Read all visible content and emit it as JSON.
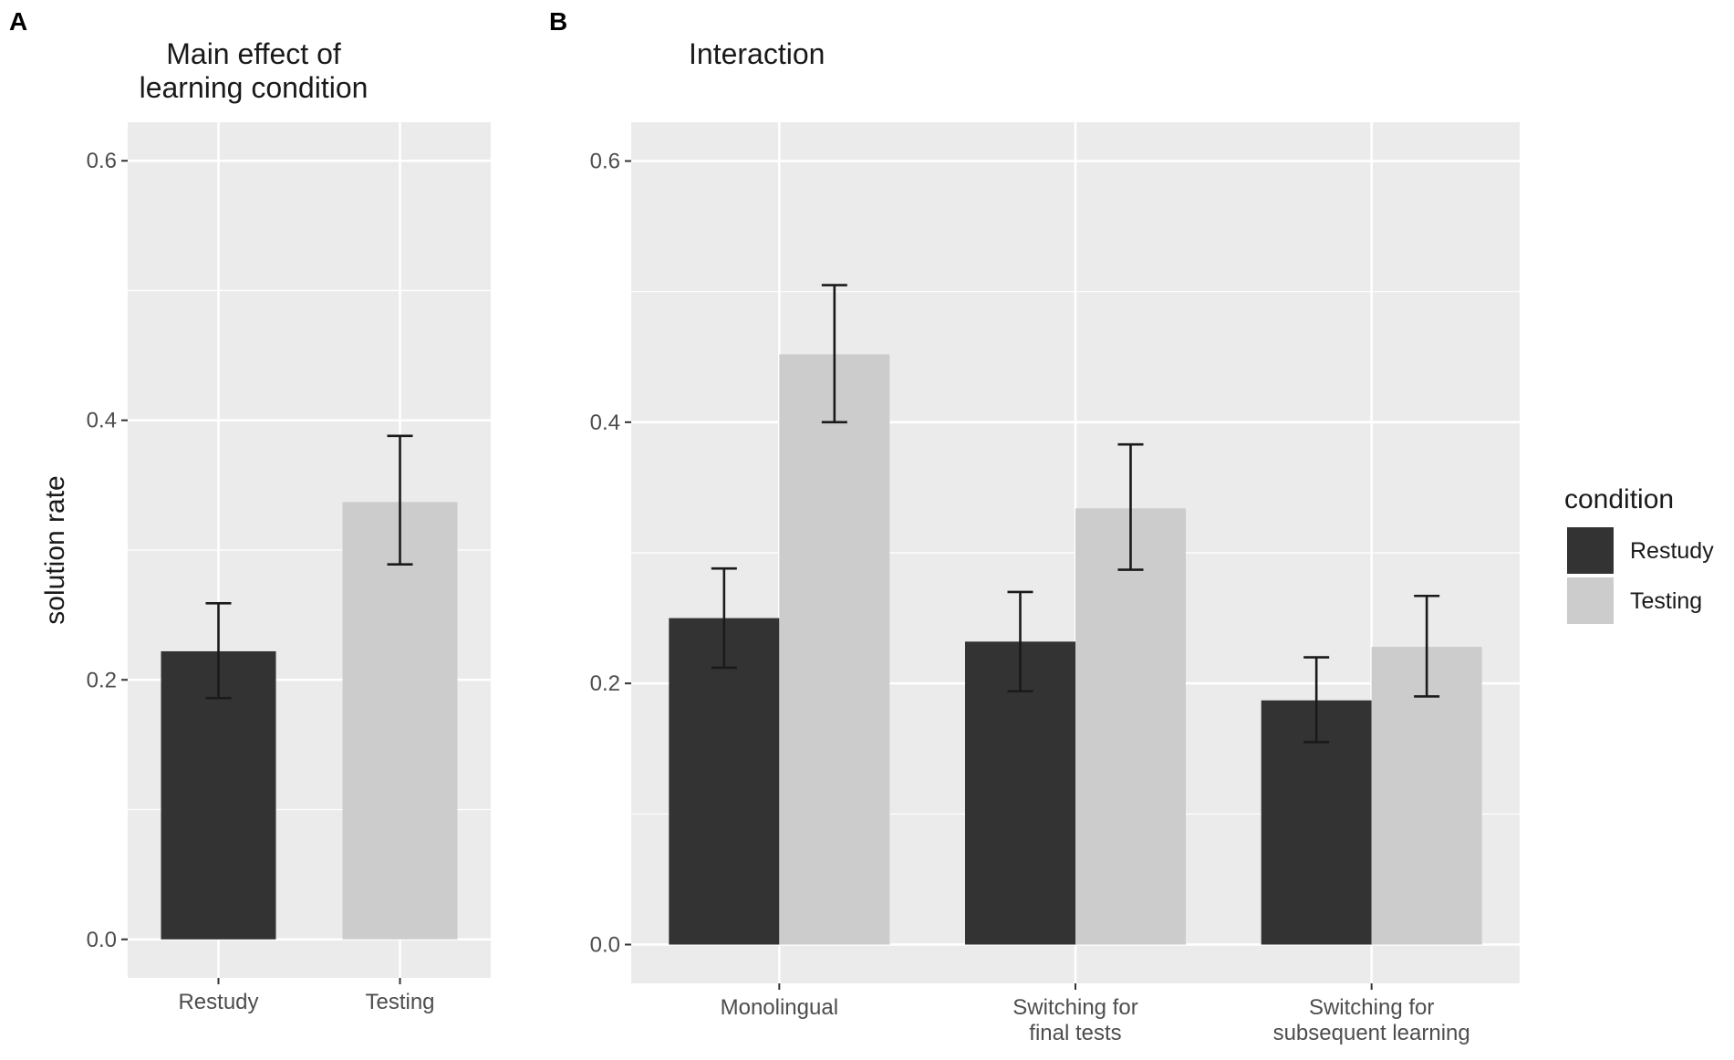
{
  "chart_data": [
    {
      "panel": "A",
      "type": "bar",
      "title": "Main effect of learning condition",
      "title_lines": [
        "Main effect of",
        "learning condition"
      ],
      "xlabel": "",
      "ylabel": "solution rate",
      "ylim": [
        -0.0297,
        0.6297
      ],
      "yticks": [
        0.0,
        0.2,
        0.4,
        0.6
      ],
      "ytick_labels": [
        "0.0",
        "0.2",
        "0.4",
        "0.6"
      ],
      "categories": [
        "Restudy",
        "Testing"
      ],
      "category_lines": [
        [
          "Restudy"
        ],
        [
          "Testing"
        ]
      ],
      "bars": [
        {
          "category": "Restudy",
          "condition": "Restudy",
          "value": 0.222,
          "ci_low": 0.186,
          "ci_high": 0.259
        },
        {
          "category": "Testing",
          "condition": "Testing",
          "value": 0.337,
          "ci_low": 0.289,
          "ci_high": 0.388
        }
      ]
    },
    {
      "panel": "B",
      "type": "bar",
      "title": "Interaction",
      "title_lines": [
        "Interaction"
      ],
      "xlabel": "",
      "ylabel": "",
      "ylim": [
        -0.0297,
        0.6297
      ],
      "yticks": [
        0.0,
        0.2,
        0.4,
        0.6
      ],
      "ytick_labels": [
        "0.0",
        "0.2",
        "0.4",
        "0.6"
      ],
      "categories": [
        "Monolingual",
        "Switching for final tests",
        "Switching for subsequent learning"
      ],
      "category_lines": [
        [
          "Monolingual"
        ],
        [
          "Switching for",
          "final tests"
        ],
        [
          "Switching for",
          "subsequent learning"
        ]
      ],
      "series": [
        {
          "name": "Restudy",
          "values": [
            0.25,
            0.232,
            0.187
          ],
          "ci_low": [
            0.212,
            0.194,
            0.155
          ],
          "ci_high": [
            0.288,
            0.27,
            0.22
          ]
        },
        {
          "name": "Testing",
          "values": [
            0.452,
            0.334,
            0.228
          ],
          "ci_low": [
            0.4,
            0.287,
            0.19
          ],
          "ci_high": [
            0.505,
            0.383,
            0.267
          ]
        }
      ]
    }
  ],
  "panel_labels": [
    "A",
    "B"
  ],
  "legend": {
    "title": "condition",
    "items": [
      {
        "label": "Restudy",
        "color": "#333333"
      },
      {
        "label": "Testing",
        "color": "#cccccc"
      }
    ]
  },
  "colors": {
    "panel_bg": "#ebebeb",
    "grid": "#ffffff",
    "restudy": "#333333",
    "testing": "#cccccc",
    "errorbar": "#1a1a1a",
    "tick_text": "#4d4d4d",
    "tick_mark": "#333333"
  }
}
